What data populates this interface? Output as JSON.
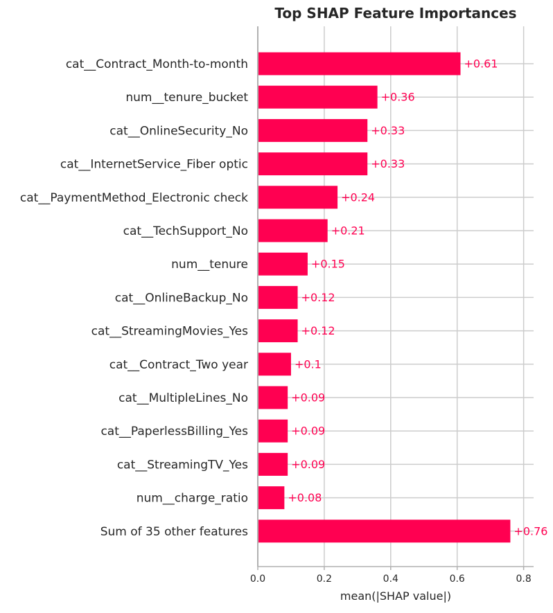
{
  "chart_data": {
    "type": "bar",
    "orientation": "horizontal",
    "title": "Top SHAP Feature Importances",
    "xlabel": "mean(|SHAP value|)",
    "ylabel": "",
    "xlim": [
      0,
      0.83
    ],
    "xticks": [
      0.0,
      0.2,
      0.4,
      0.6,
      0.8
    ],
    "xtick_labels": [
      "0.0",
      "0.2",
      "0.4",
      "0.6",
      "0.8"
    ],
    "grid": true,
    "categories": [
      "cat__Contract_Month-to-month",
      "num__tenure_bucket",
      "cat__OnlineSecurity_No",
      "cat__InternetService_Fiber optic",
      "cat__PaymentMethod_Electronic check",
      "cat__TechSupport_No",
      "num__tenure",
      "cat__OnlineBackup_No",
      "cat__StreamingMovies_Yes",
      "cat__Contract_Two year",
      "cat__MultipleLines_No",
      "cat__PaperlessBilling_Yes",
      "cat__StreamingTV_Yes",
      "num__charge_ratio",
      "Sum of 35 other features"
    ],
    "values": [
      0.61,
      0.36,
      0.33,
      0.33,
      0.24,
      0.21,
      0.15,
      0.12,
      0.12,
      0.1,
      0.09,
      0.09,
      0.09,
      0.08,
      0.76
    ],
    "value_labels": [
      "+0.61",
      "+0.36",
      "+0.33",
      "+0.33",
      "+0.24",
      "+0.21",
      "+0.15",
      "+0.12",
      "+0.12",
      "+0.1",
      "+0.09",
      "+0.09",
      "+0.09",
      "+0.08",
      "+0.76"
    ],
    "colors": {
      "bar": "#ff0051",
      "value_text": "#ff0051",
      "grid": "#cccccc",
      "axis": "#b0b0b0"
    }
  }
}
